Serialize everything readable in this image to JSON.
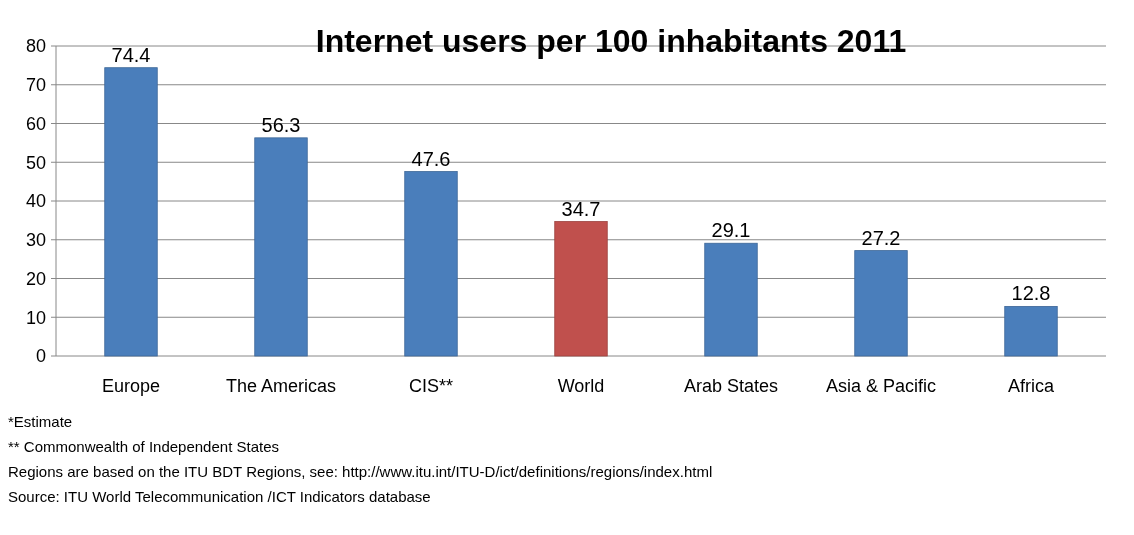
{
  "chart_data": {
    "type": "bar",
    "title": "Internet users per 100 inhabitants 2011",
    "categories": [
      "Europe",
      "The Americas",
      "CIS**",
      "World",
      "Arab States",
      "Asia & Pacific",
      "Africa"
    ],
    "values": [
      74.4,
      56.3,
      47.6,
      34.7,
      29.1,
      27.2,
      12.8
    ],
    "colors": [
      "#4a7ebb",
      "#4a7ebb",
      "#4a7ebb",
      "#c0504d",
      "#4a7ebb",
      "#4a7ebb",
      "#4a7ebb"
    ],
    "ylim": [
      0,
      80
    ],
    "yticks": [
      0,
      10,
      20,
      30,
      40,
      50,
      60,
      70,
      80
    ],
    "grid": "y",
    "data_labels": true,
    "annotations": [
      "*Estimate",
      "** Commonwealth of Independent States",
      "Regions are based on the ITU BDT Regions, see: http://www.itu.int/ITU-D/ict/definitions/regions/index.html",
      "Source:  ITU World Telecommunication /ICT Indicators database"
    ]
  }
}
